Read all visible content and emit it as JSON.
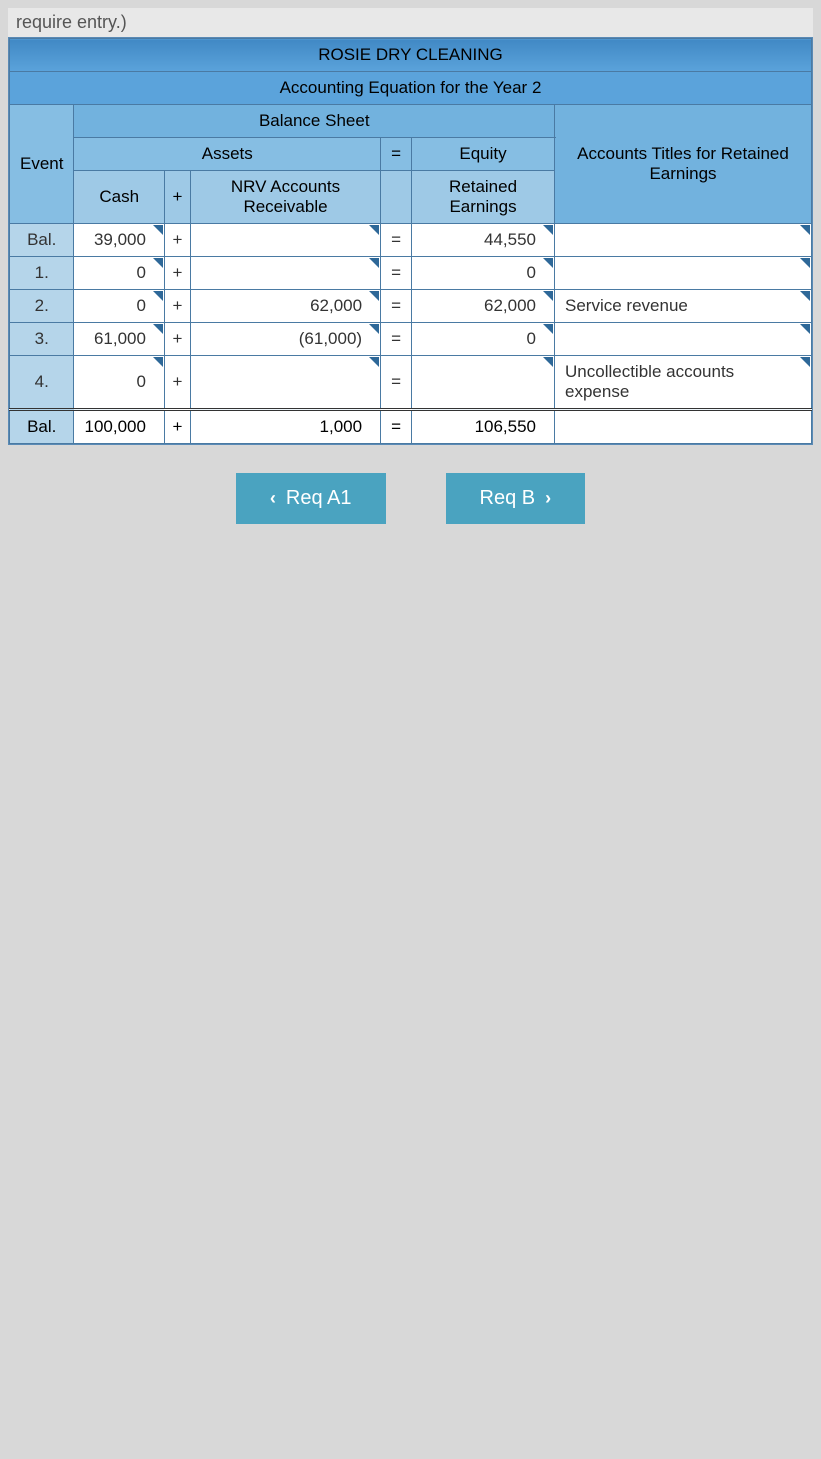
{
  "context_text": "require entry.)",
  "table": {
    "title": "ROSIE DRY CLEANING",
    "subtitle": "Accounting Equation for the Year 2",
    "balance_sheet_label": "Balance Sheet",
    "accounts_titles_label": "Accounts Titles for Retained Earnings",
    "event_label": "Event",
    "assets_label": "Assets",
    "equals_label": "=",
    "equity_label": "Equity",
    "cash_label": "Cash",
    "plus_label": "+",
    "nrv_label": "NRV Accounts Receivable",
    "retained_label": "Retained Earnings",
    "rows": [
      {
        "event": "Bal.",
        "cash": "39,000",
        "op": "+",
        "nrv": "",
        "eq": "=",
        "re": "44,550",
        "acct": ""
      },
      {
        "event": "1.",
        "cash": "0",
        "op": "+",
        "nrv": "",
        "eq": "=",
        "re": "0",
        "acct": ""
      },
      {
        "event": "2.",
        "cash": "0",
        "op": "+",
        "nrv": "62,000",
        "eq": "=",
        "re": "62,000",
        "acct": "Service revenue"
      },
      {
        "event": "3.",
        "cash": "61,000",
        "op": "+",
        "nrv": "(61,000)",
        "eq": "=",
        "re": "0",
        "acct": ""
      },
      {
        "event": "4.",
        "cash": "0",
        "op": "+",
        "nrv": "",
        "eq": "=",
        "re": "",
        "acct": "Uncollectible accounts expense"
      },
      {
        "event": "Bal.",
        "cash": "100,000",
        "op": "+",
        "nrv": "1,000",
        "eq": "=",
        "re": "106,550",
        "acct": ""
      }
    ]
  },
  "buttons": {
    "prev": "Req A1",
    "next": "Req B"
  },
  "colors": {
    "header_bg": "#5ba3db",
    "button_bg": "#4aa3c0"
  }
}
